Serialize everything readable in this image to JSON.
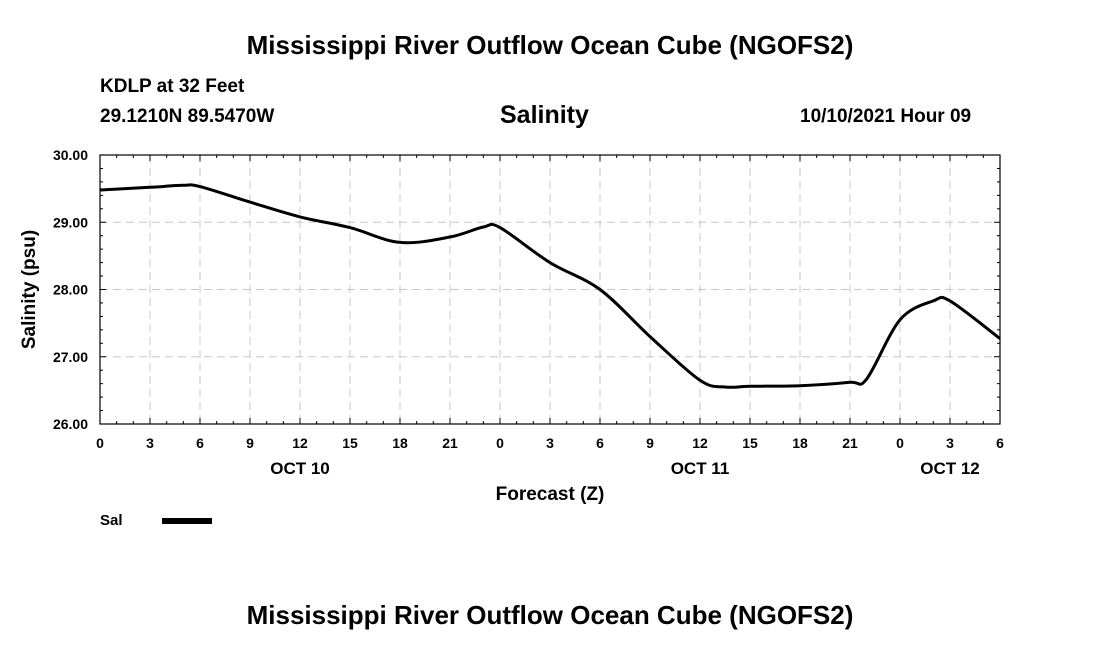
{
  "header": {
    "title": "Mississippi River Outflow Ocean Cube (NGOFS2)",
    "station": "KDLP at 32 Feet",
    "coordinates": "29.1210N  89.5470W",
    "variable": "Salinity",
    "datetime": "10/10/2021 Hour 09"
  },
  "footer": {
    "title": "Mississippi River Outflow Ocean Cube (NGOFS2)"
  },
  "chart_data": {
    "type": "line",
    "title": "Salinity",
    "xlabel": "Forecast (Z)",
    "ylabel": "Salinity (psu)",
    "xlim": [
      0,
      54
    ],
    "ylim": [
      26,
      30
    ],
    "grid": true,
    "x_tick_labels": [
      "0",
      "3",
      "6",
      "9",
      "12",
      "15",
      "18",
      "21",
      "0",
      "3",
      "6",
      "9",
      "12",
      "15",
      "18",
      "21",
      "0",
      "3",
      "6"
    ],
    "y_tick_labels": [
      "26.00",
      "27.00",
      "28.00",
      "29.00",
      "30.00"
    ],
    "date_labels": [
      {
        "hour": 12,
        "label": "OCT 10"
      },
      {
        "hour": 36,
        "label": "OCT 11"
      },
      {
        "hour": 51,
        "label": "OCT 12"
      }
    ],
    "legend": {
      "position": "bottom-left",
      "entries": [
        {
          "label": "Sal",
          "color": "#000000"
        }
      ]
    },
    "series": [
      {
        "name": "Sal",
        "color": "#000000",
        "x": [
          0,
          3,
          5,
          6,
          9,
          12,
          15,
          18,
          21,
          23,
          24,
          27,
          30,
          33,
          36,
          37.5,
          39,
          42,
          45,
          46,
          48,
          50,
          51,
          54
        ],
        "y": [
          29.48,
          29.52,
          29.55,
          29.53,
          29.3,
          29.08,
          28.92,
          28.7,
          28.78,
          28.93,
          28.92,
          28.4,
          28.0,
          27.3,
          26.65,
          26.55,
          26.56,
          26.57,
          26.62,
          26.67,
          27.55,
          27.83,
          27.83,
          27.27
        ]
      }
    ]
  }
}
